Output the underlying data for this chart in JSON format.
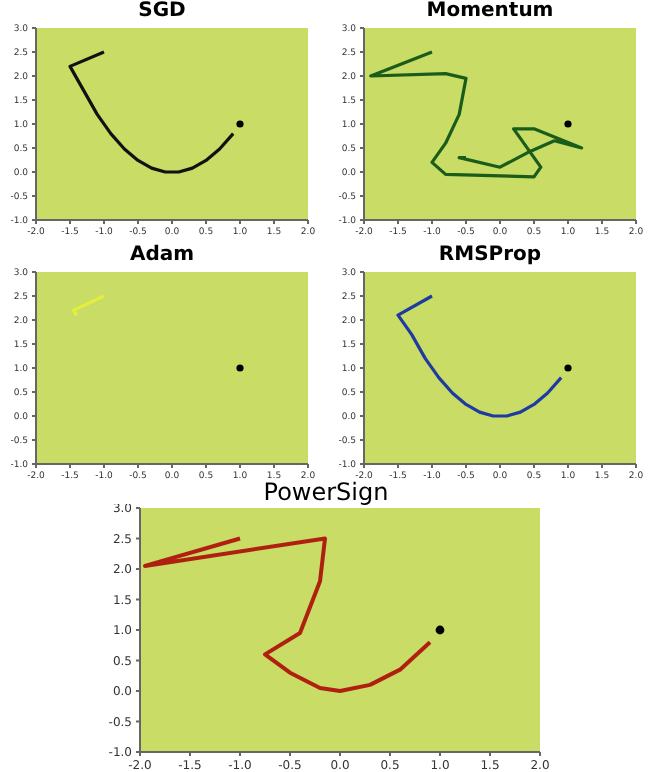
{
  "chart_data": [
    {
      "type": "line",
      "title": "SGD",
      "xlim": [
        -2,
        2
      ],
      "ylim": [
        -1,
        3
      ],
      "marker": "none",
      "xticks": [
        {
          "value": -2,
          "label": "-2.0"
        },
        {
          "value": -1.5,
          "label": "-1.5"
        },
        {
          "value": -1,
          "label": "-1.0"
        },
        {
          "value": -0.5,
          "label": "-0.5"
        },
        {
          "value": 0,
          "label": "0.0"
        },
        {
          "value": 0.5,
          "label": "0.5"
        },
        {
          "value": 1,
          "label": "1.0"
        },
        {
          "value": 1.5,
          "label": "1.5"
        },
        {
          "value": 2,
          "label": "2.0"
        }
      ],
      "yticks": [
        {
          "value": -1,
          "label": "-1.0"
        },
        {
          "value": -0.5,
          "label": "-0.5"
        },
        {
          "value": 0,
          "label": "0.0"
        },
        {
          "value": 0.5,
          "label": "0.5"
        },
        {
          "value": 1,
          "label": "1.0"
        },
        {
          "value": 1.5,
          "label": "1.5"
        },
        {
          "value": 2,
          "label": "2.0"
        },
        {
          "value": 2.5,
          "label": "2.5"
        },
        {
          "value": 3,
          "label": "3.0"
        }
      ],
      "series": [
        {
          "color": "#111111",
          "x": [
            -1,
            -1.5,
            -1.3,
            -1.1,
            -0.9,
            -0.7,
            -0.5,
            -0.3,
            -0.1,
            0.1,
            0.3,
            0.5,
            0.7,
            0.9
          ],
          "values": [
            2.5,
            2.2,
            1.7,
            1.2,
            0.8,
            0.48,
            0.24,
            0.08,
            0,
            0,
            0.08,
            0.24,
            0.48,
            0.8
          ]
        },
        {
          "type": "scatter",
          "marker": "circle",
          "color": "#000000",
          "x": [
            1
          ],
          "values": [
            1
          ]
        }
      ]
    },
    {
      "type": "line",
      "title": "Momentum",
      "xlim": [
        -2,
        2
      ],
      "ylim": [
        -1,
        3
      ],
      "marker": "none",
      "xticks": [
        {
          "value": -2,
          "label": "-2.0"
        },
        {
          "value": -1.5,
          "label": "-1.5"
        },
        {
          "value": -1,
          "label": "-1.0"
        },
        {
          "value": -0.5,
          "label": "-0.5"
        },
        {
          "value": 0,
          "label": "0.0"
        },
        {
          "value": 0.5,
          "label": "0.5"
        },
        {
          "value": 1,
          "label": "1.0"
        },
        {
          "value": 1.5,
          "label": "1.5"
        },
        {
          "value": 2,
          "label": "2.0"
        }
      ],
      "yticks": [
        {
          "value": -1,
          "label": "-1.0"
        },
        {
          "value": -0.5,
          "label": "-0.5"
        },
        {
          "value": 0,
          "label": "0.0"
        },
        {
          "value": 0.5,
          "label": "0.5"
        },
        {
          "value": 1,
          "label": "1.0"
        },
        {
          "value": 1.5,
          "label": "1.5"
        },
        {
          "value": 2,
          "label": "2.0"
        },
        {
          "value": 2.5,
          "label": "2.5"
        },
        {
          "value": 3,
          "label": "3.0"
        }
      ],
      "series": [
        {
          "color": "#1a5c1a",
          "x": [
            -1,
            -1.9,
            -0.8,
            -0.5,
            -0.6,
            -0.8,
            -1.0,
            -0.8,
            0.5,
            0.6,
            0.3,
            0.2,
            0.5,
            1.2,
            0.8,
            0.4,
            0.0,
            -0.6,
            -0.5
          ],
          "values": [
            2.5,
            2.0,
            2.05,
            1.95,
            1.2,
            0.6,
            0.2,
            -0.05,
            -0.1,
            0.1,
            0.7,
            0.9,
            0.9,
            0.5,
            0.65,
            0.4,
            0.1,
            0.3,
            0.3
          ]
        },
        {
          "type": "scatter",
          "marker": "circle",
          "color": "#000000",
          "x": [
            1
          ],
          "values": [
            1
          ]
        }
      ]
    },
    {
      "type": "line",
      "title": "Adam",
      "xlim": [
        -2,
        2
      ],
      "ylim": [
        -1,
        3
      ],
      "marker": "none",
      "xticks": [
        {
          "value": -2,
          "label": "-2.0"
        },
        {
          "value": -1.5,
          "label": "-1.5"
        },
        {
          "value": -1,
          "label": "-1.0"
        },
        {
          "value": -0.5,
          "label": "-0.5"
        },
        {
          "value": 0,
          "label": "0.0"
        },
        {
          "value": 0.5,
          "label": "0.5"
        },
        {
          "value": 1,
          "label": "1.0"
        },
        {
          "value": 1.5,
          "label": "1.5"
        },
        {
          "value": 2,
          "label": "2.0"
        }
      ],
      "yticks": [
        {
          "value": -1,
          "label": "-1.0"
        },
        {
          "value": -0.5,
          "label": "-0.5"
        },
        {
          "value": 0,
          "label": "0.0"
        },
        {
          "value": 0.5,
          "label": "0.5"
        },
        {
          "value": 1,
          "label": "1.0"
        },
        {
          "value": 1.5,
          "label": "1.5"
        },
        {
          "value": 2,
          "label": "2.0"
        },
        {
          "value": 2.5,
          "label": "2.5"
        },
        {
          "value": 3,
          "label": "3.0"
        }
      ],
      "series": [
        {
          "color": "#e4ee3c",
          "x": [
            -1,
            -1.45,
            -1.4
          ],
          "values": [
            2.5,
            2.2,
            2.1
          ]
        },
        {
          "type": "scatter",
          "marker": "circle",
          "color": "#000000",
          "x": [
            1
          ],
          "values": [
            1
          ]
        }
      ]
    },
    {
      "type": "line",
      "title": "RMSProp",
      "xlim": [
        -2,
        2
      ],
      "ylim": [
        -1,
        3
      ],
      "marker": "none",
      "xticks": [
        {
          "value": -2,
          "label": "-2.0"
        },
        {
          "value": -1.5,
          "label": "-1.5"
        },
        {
          "value": -1,
          "label": "-1.0"
        },
        {
          "value": -0.5,
          "label": "-0.5"
        },
        {
          "value": 0,
          "label": "0.0"
        },
        {
          "value": 0.5,
          "label": "0.5"
        },
        {
          "value": 1,
          "label": "1.0"
        },
        {
          "value": 1.5,
          "label": "1.5"
        },
        {
          "value": 2,
          "label": "2.0"
        }
      ],
      "yticks": [
        {
          "value": -1,
          "label": "-1.0"
        },
        {
          "value": -0.5,
          "label": "-0.5"
        },
        {
          "value": 0,
          "label": "0.0"
        },
        {
          "value": 0.5,
          "label": "0.5"
        },
        {
          "value": 1,
          "label": "1.0"
        },
        {
          "value": 1.5,
          "label": "1.5"
        },
        {
          "value": 2,
          "label": "2.0"
        },
        {
          "value": 2.5,
          "label": "2.5"
        },
        {
          "value": 3,
          "label": "3.0"
        }
      ],
      "series": [
        {
          "color": "#1f3aa0",
          "x": [
            -1,
            -1.5,
            -1.3,
            -1.1,
            -0.9,
            -0.7,
            -0.5,
            -0.3,
            -0.1,
            0.1,
            0.3,
            0.5,
            0.7,
            0.9
          ],
          "values": [
            2.5,
            2.1,
            1.7,
            1.2,
            0.8,
            0.48,
            0.24,
            0.08,
            0,
            0,
            0.08,
            0.24,
            0.48,
            0.8
          ]
        },
        {
          "type": "scatter",
          "marker": "circle",
          "color": "#000000",
          "x": [
            1
          ],
          "values": [
            1
          ]
        }
      ]
    },
    {
      "type": "line",
      "title": "PowerSign",
      "xlim": [
        -2,
        2
      ],
      "ylim": [
        -1,
        3
      ],
      "marker": "none",
      "xticks": [
        {
          "value": -2,
          "label": "-2.0"
        },
        {
          "value": -1.5,
          "label": "-1.5"
        },
        {
          "value": -1,
          "label": "-1.0"
        },
        {
          "value": -0.5,
          "label": "-0.5"
        },
        {
          "value": 0,
          "label": "0.0"
        },
        {
          "value": 0.5,
          "label": "0.5"
        },
        {
          "value": 1,
          "label": "1.0"
        },
        {
          "value": 1.5,
          "label": "1.5"
        },
        {
          "value": 2,
          "label": "2.0"
        }
      ],
      "yticks": [
        {
          "value": -1,
          "label": "-1.0"
        },
        {
          "value": -0.5,
          "label": "-0.5"
        },
        {
          "value": 0,
          "label": "0.0"
        },
        {
          "value": 0.5,
          "label": "0.5"
        },
        {
          "value": 1,
          "label": "1.0"
        },
        {
          "value": 1.5,
          "label": "1.5"
        },
        {
          "value": 2,
          "label": "2.0"
        },
        {
          "value": 2.5,
          "label": "2.5"
        },
        {
          "value": 3,
          "label": "3.0"
        }
      ],
      "series": [
        {
          "color": "#b02010",
          "x": [
            -1,
            -1.95,
            -0.15,
            -0.2,
            -0.4,
            -0.75,
            -0.5,
            -0.2,
            0,
            0.3,
            0.6,
            0.9
          ],
          "values": [
            2.5,
            2.05,
            2.5,
            1.8,
            0.95,
            0.6,
            0.3,
            0.05,
            0,
            0.1,
            0.35,
            0.8
          ]
        },
        {
          "type": "scatter",
          "marker": "circle",
          "color": "#000000",
          "x": [
            1
          ],
          "values": [
            1
          ]
        }
      ]
    }
  ]
}
